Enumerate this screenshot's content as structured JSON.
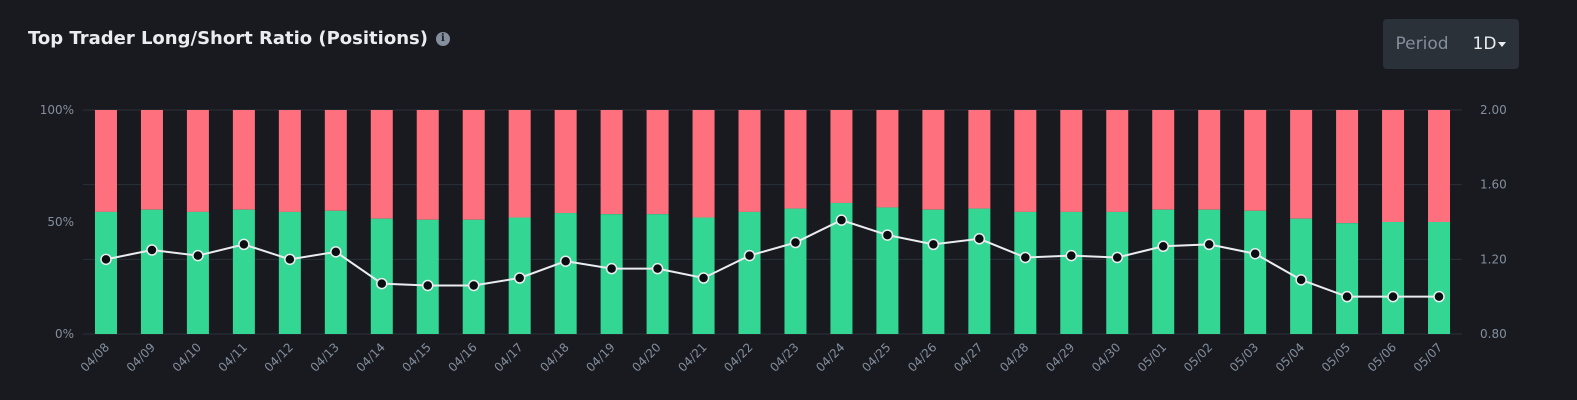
{
  "header": {
    "title": "Top Trader Long/Short Ratio (Positions)",
    "info_icon": "info-icon"
  },
  "period": {
    "label": "Period",
    "value": "1D"
  },
  "colors": {
    "background": "#181a20",
    "long": "#34d694",
    "short": "#ff707e",
    "line": "#eaecef",
    "grid": "#2b3139",
    "axis_text": "#848e9c"
  },
  "chart_data": {
    "type": "bar",
    "categories": [
      "04/08",
      "04/09",
      "04/10",
      "04/11",
      "04/12",
      "04/13",
      "04/14",
      "04/15",
      "04/16",
      "04/17",
      "04/18",
      "04/19",
      "04/20",
      "04/21",
      "04/22",
      "04/23",
      "04/24",
      "04/25",
      "04/26",
      "04/27",
      "04/28",
      "04/29",
      "04/30",
      "05/01",
      "05/02",
      "05/03",
      "05/04",
      "05/05",
      "05/06",
      "05/07"
    ],
    "series": [
      {
        "values": [
          54.5,
          55.5,
          54.5,
          55.5,
          54.5,
          55,
          51.5,
          51,
          51,
          52,
          54,
          53.5,
          53.5,
          52,
          54.5,
          56,
          58.5,
          56.5,
          55.5,
          56,
          54.5,
          54.5,
          54.5,
          55.5,
          55.5,
          55,
          51.5,
          49.5,
          50,
          50
        ]
      },
      {
        "values": [
          45.5,
          44.5,
          45.5,
          44.5,
          45.5,
          45,
          48.5,
          49,
          49,
          48,
          46,
          46.5,
          46.5,
          48,
          45.5,
          44,
          41.5,
          43.5,
          44.5,
          44,
          45.5,
          45.5,
          45.5,
          44.5,
          44.5,
          45,
          48.5,
          50.5,
          50,
          50
        ]
      },
      {
        "values": [
          1.2,
          1.25,
          1.22,
          1.28,
          1.2,
          1.24,
          1.07,
          1.06,
          1.06,
          1.1,
          1.19,
          1.15,
          1.15,
          1.1,
          1.22,
          1.29,
          1.41,
          1.33,
          1.28,
          1.31,
          1.21,
          1.22,
          1.21,
          1.27,
          1.28,
          1.23,
          1.09,
          1.0,
          1.0,
          1.0
        ]
      }
    ],
    "y_left": {
      "ticks": [
        "0%",
        "50%",
        "100%"
      ],
      "range": [
        0,
        100
      ]
    },
    "y_right": {
      "ticks": [
        "0.80",
        "1.20",
        "1.60",
        "2.00"
      ],
      "range": [
        0.8,
        2.0
      ]
    },
    "grid": true
  }
}
